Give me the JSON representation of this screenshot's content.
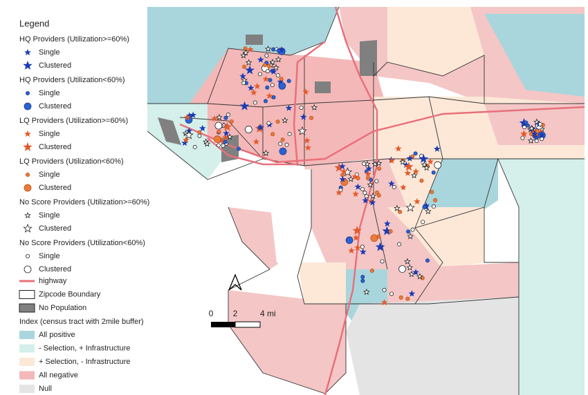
{
  "legend": {
    "title": "Legend",
    "groups": [
      {
        "title": "HQ Providers (Utilization>=60%)",
        "items": [
          "Single",
          "Clustered"
        ]
      },
      {
        "title": "HQ Providers (Utilization<60%)",
        "items": [
          "Single",
          "Clustered"
        ]
      },
      {
        "title": "LQ Providers (Utilization>=60%)",
        "items": [
          "Single",
          "Clustered"
        ]
      },
      {
        "title": "LQ Providers (Utilization<60%)",
        "items": [
          "Single",
          "Clustered"
        ]
      },
      {
        "title": "No Score Providers (Utilization>=60%)",
        "items": [
          "Single",
          "Clustered"
        ]
      },
      {
        "title": "No Score Providers (Utilization<60%)",
        "items": [
          "Single",
          "Clustered"
        ]
      }
    ],
    "layers": [
      "highway",
      "Zipcode Boundary",
      "No Population"
    ],
    "index": {
      "title": "Index (census tract with 2mile buffer)",
      "items": [
        "All positive",
        "- Selection, + Infrastructure",
        "+ Selection, - Infrastructure",
        "All negative",
        "Null"
      ]
    }
  },
  "scale_bar": {
    "labels": [
      "0",
      "2",
      "4 mi"
    ]
  }
}
